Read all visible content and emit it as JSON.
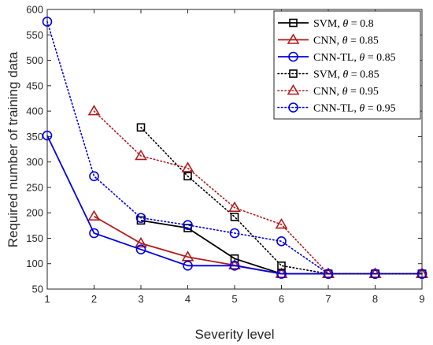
{
  "chart_data": {
    "type": "line",
    "xlabel": "Severity level",
    "ylabel": "Required number of training data",
    "xlim": [
      1,
      9
    ],
    "ylim": [
      50,
      600
    ],
    "x_ticks": [
      1,
      2,
      3,
      4,
      5,
      6,
      7,
      8,
      9
    ],
    "y_ticks": [
      50,
      100,
      150,
      200,
      250,
      300,
      350,
      400,
      450,
      500,
      550,
      600
    ],
    "grid": false,
    "legend_position": "top-right",
    "series": [
      {
        "name": "SVM, θ = 0.8",
        "label_main": "SVM, ",
        "label_value": " = 0.8",
        "color": "#000000",
        "line": "solid",
        "marker": "square",
        "x": [
          3,
          4,
          5,
          6,
          7,
          8,
          9
        ],
        "y": [
          185,
          170,
          110,
          80,
          80,
          80,
          80
        ]
      },
      {
        "name": "CNN, θ = 0.85",
        "label_main": "CNN, ",
        "label_value": " = 0.85",
        "color": "#b31b1b",
        "line": "solid",
        "marker": "triangle",
        "x": [
          2,
          3,
          4,
          5,
          6,
          7,
          8,
          9
        ],
        "y": [
          193,
          140,
          113,
          97,
          80,
          80,
          80,
          80
        ]
      },
      {
        "name": "CNN-TL, θ = 0.85",
        "label_main": "CNN-TL, ",
        "label_value": " = 0.85",
        "color": "#0000e6",
        "line": "solid",
        "marker": "circle",
        "x": [
          1,
          2,
          3,
          4,
          5,
          6,
          7,
          8,
          9
        ],
        "y": [
          352,
          160,
          128,
          96,
          96,
          80,
          80,
          80,
          80
        ]
      },
      {
        "name": "SVM, θ = 0.85",
        "label_main": "SVM, ",
        "label_value": " = 0.85",
        "color": "#000000",
        "line": "dotted",
        "marker": "square",
        "x": [
          3,
          4,
          5,
          6,
          7,
          8,
          9
        ],
        "y": [
          368,
          272,
          192,
          96,
          80,
          80,
          80
        ]
      },
      {
        "name": "CNN, θ = 0.95",
        "label_main": "CNN, ",
        "label_value": " = 0.95",
        "color": "#b31b1b",
        "line": "dotted",
        "marker": "triangle",
        "x": [
          2,
          3,
          4,
          5,
          6,
          7,
          8,
          9
        ],
        "y": [
          400,
          312,
          288,
          210,
          177,
          80,
          80,
          80
        ]
      },
      {
        "name": "CNN-TL, θ = 0.95",
        "label_main": "CNN-TL, ",
        "label_value": " = 0.95",
        "color": "#0000e6",
        "line": "dotted",
        "marker": "circle",
        "x": [
          1,
          2,
          3,
          4,
          5,
          6,
          7,
          8,
          9
        ],
        "y": [
          576,
          272,
          190,
          176,
          160,
          144,
          80,
          80,
          80
        ]
      }
    ]
  }
}
